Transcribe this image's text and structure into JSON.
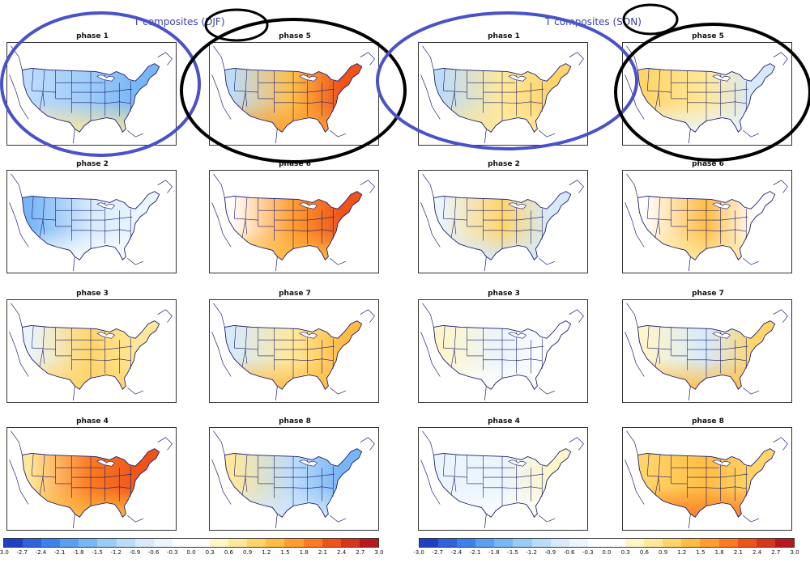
{
  "titles": {
    "left": "T composites (DJF)",
    "right": "T composites (SON)"
  },
  "colorbar": {
    "levels": [
      -3.0,
      -2.7,
      -2.4,
      -2.1,
      -1.8,
      -1.5,
      -1.2,
      -0.9,
      -0.6,
      -0.3,
      0.0,
      0.3,
      0.6,
      0.9,
      1.2,
      1.5,
      1.8,
      2.1,
      2.4,
      2.7,
      3.0
    ],
    "tick_labels": [
      "-3.0",
      "-2.7",
      "-2.4",
      "-2.1",
      "-1.8",
      "-1.5",
      "-1.2",
      "-0.9",
      "-0.6",
      "-0.3",
      "0.0",
      "0.3",
      "0.6",
      "0.9",
      "1.2",
      "1.5",
      "1.8",
      "2.1",
      "2.4",
      "2.7",
      "3.0"
    ],
    "colors": [
      "#1f3fc6",
      "#2e63db",
      "#3d82ea",
      "#5a9ff2",
      "#78b6f6",
      "#9ccbf8",
      "#bcdcfa",
      "#d6eafc",
      "#eaf5fe",
      "#ffffff",
      "#ffffff",
      "#fff6c8",
      "#ffe89a",
      "#ffd56a",
      "#ffbd45",
      "#ff9e30",
      "#fb7a22",
      "#ee5419",
      "#d8361a",
      "#b81a1c"
    ]
  },
  "panels_left": [
    {
      "label": "phase 1"
    },
    {
      "label": "phase 5"
    },
    {
      "label": "phase 2"
    },
    {
      "label": "phase 6"
    },
    {
      "label": "phase 3"
    },
    {
      "label": "phase 7"
    },
    {
      "label": "phase 4"
    },
    {
      "label": "phase 8"
    }
  ],
  "panels_right": [
    {
      "label": "phase 1"
    },
    {
      "label": "phase 5"
    },
    {
      "label": "phase 2"
    },
    {
      "label": "phase 6"
    },
    {
      "label": "phase 3"
    },
    {
      "label": "phase 7"
    },
    {
      "label": "phase 4"
    },
    {
      "label": "phase 8"
    }
  ],
  "chart_data": [
    {
      "type": "heatmap",
      "title": "T composites (DJF)",
      "panels": [
        {
          "label": "phase 1",
          "description_values": {
            "west": -1.2,
            "central": -1.5,
            "east": -1.8,
            "south": 0.6
          }
        },
        {
          "label": "phase 2",
          "description_values": {
            "west": -1.8,
            "central": -0.9,
            "east": -0.6,
            "south": -0.3
          }
        },
        {
          "label": "phase 3",
          "description_values": {
            "west": -0.6,
            "central": 0.9,
            "east": 0.6,
            "south": 0.9
          }
        },
        {
          "label": "phase 4",
          "description_values": {
            "west": 0.6,
            "central": 1.8,
            "east": 2.1,
            "south": 1.2
          }
        },
        {
          "label": "phase 5",
          "description_values": {
            "west": -1.2,
            "central": 1.2,
            "east": 2.1,
            "south": 1.5
          }
        },
        {
          "label": "phase 6",
          "description_values": {
            "west": -0.3,
            "central": 1.5,
            "east": 2.1,
            "south": 1.2
          }
        },
        {
          "label": "phase 7",
          "description_values": {
            "west": -0.9,
            "central": 0.6,
            "east": 1.2,
            "south": 1.2
          }
        },
        {
          "label": "phase 8",
          "description_values": {
            "west": 0.6,
            "central": -1.2,
            "east": -1.8,
            "south": -0.9
          }
        }
      ],
      "colorbar_range": [
        -3.0,
        3.0
      ]
    },
    {
      "type": "heatmap",
      "title": "T composites (SON)",
      "panels": [
        {
          "label": "phase 1",
          "description_values": {
            "west": -1.2,
            "central": 0.6,
            "east": 0.9,
            "south": 0.6
          }
        },
        {
          "label": "phase 2",
          "description_values": {
            "west": -0.6,
            "central": 0.9,
            "east": -0.9,
            "south": -0.9
          }
        },
        {
          "label": "phase 3",
          "description_values": {
            "west": 0.3,
            "central": -0.6,
            "east": -0.3,
            "south": -0.3
          }
        },
        {
          "label": "phase 4",
          "description_values": {
            "west": -0.6,
            "central": -0.6,
            "east": 0.3,
            "south": 0.0
          }
        },
        {
          "label": "phase 5",
          "description_values": {
            "west": 0.9,
            "central": 0.6,
            "east": -0.9,
            "south": -0.6
          }
        },
        {
          "label": "phase 6",
          "description_values": {
            "west": -0.3,
            "central": 1.2,
            "east": -0.3,
            "south": 0.6
          }
        },
        {
          "label": "phase 7",
          "description_values": {
            "west": 0.3,
            "central": -0.9,
            "east": 0.9,
            "south": 1.2
          }
        },
        {
          "label": "phase 8",
          "description_values": {
            "west": 0.9,
            "central": 1.2,
            "east": 0.9,
            "south": 1.8
          }
        }
      ],
      "colorbar_range": [
        -3.0,
        3.0
      ]
    }
  ]
}
